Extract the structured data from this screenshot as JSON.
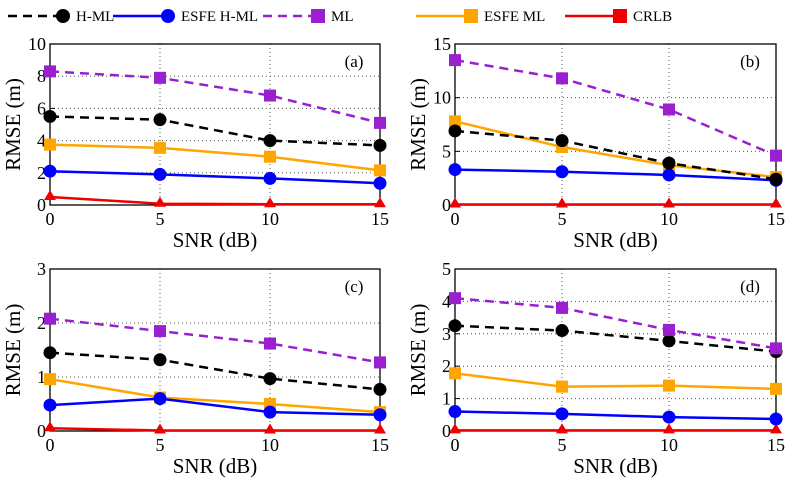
{
  "chart_data": {
    "type": "line",
    "legend": [
      {
        "name": "H-ML",
        "color": "#000000",
        "style": "dashed",
        "marker": "circle"
      },
      {
        "name": "ESFE H-ML",
        "color": "#0000ff",
        "style": "solid",
        "marker": "circle"
      },
      {
        "name": "ML",
        "color": "#9a1fcf",
        "style": "dashed",
        "marker": "square"
      },
      {
        "name": "ESFE ML",
        "color": "#ffa500",
        "style": "solid",
        "marker": "square"
      },
      {
        "name": "CRLB",
        "color": "#ee0000",
        "style": "solid",
        "marker": "square"
      }
    ],
    "panels": [
      {
        "label": "(a)",
        "xlabel": "SNR (dB)",
        "ylabel": "RMSE (m)",
        "x": [
          0,
          5,
          10,
          15
        ],
        "xlim": [
          0,
          15
        ],
        "ylim": [
          0,
          10
        ],
        "xticks": [
          "0",
          "5",
          "10",
          "15"
        ],
        "yticks": [
          0,
          2,
          4,
          6,
          8,
          10
        ],
        "ytick_labels": [
          "0",
          "2",
          "4",
          "6",
          "8",
          "10"
        ],
        "series": [
          {
            "name": "H-ML",
            "values": [
              5.5,
              5.3,
              4.0,
              3.7
            ]
          },
          {
            "name": "ESFE H-ML",
            "values": [
              2.1,
              1.9,
              1.65,
              1.35
            ]
          },
          {
            "name": "ML",
            "values": [
              8.3,
              7.9,
              6.8,
              5.1
            ]
          },
          {
            "name": "ESFE ML",
            "values": [
              3.75,
              3.55,
              3.0,
              2.15
            ]
          },
          {
            "name": "CRLB",
            "values": [
              0.5,
              0.08,
              0.05,
              0.05
            ]
          }
        ]
      },
      {
        "label": "(b)",
        "xlabel": "SNR (dB)",
        "ylabel": "RMSE (m)",
        "x": [
          0,
          5,
          10,
          15
        ],
        "xlim": [
          0,
          15
        ],
        "ylim": [
          0,
          15
        ],
        "xticks": [
          "0",
          "5",
          "10",
          "15"
        ],
        "yticks": [
          0,
          5,
          10,
          15
        ],
        "ytick_labels": [
          "0",
          "5",
          "10",
          "15"
        ],
        "series": [
          {
            "name": "H-ML",
            "values": [
              6.9,
              6.0,
              3.9,
              2.4
            ]
          },
          {
            "name": "ESFE H-ML",
            "values": [
              3.3,
              3.1,
              2.8,
              2.3
            ]
          },
          {
            "name": "ML",
            "values": [
              13.5,
              11.8,
              8.9,
              4.6
            ]
          },
          {
            "name": "ESFE ML",
            "values": [
              7.8,
              5.4,
              3.7,
              2.6
            ]
          },
          {
            "name": "CRLB",
            "values": [
              0.05,
              0.05,
              0.05,
              0.05
            ]
          }
        ]
      },
      {
        "label": "(c)",
        "xlabel": "SNR (dB)",
        "ylabel": "RMSE (m)",
        "x": [
          0,
          5,
          10,
          15
        ],
        "xlim": [
          0,
          15
        ],
        "ylim": [
          0,
          3
        ],
        "xticks": [
          "0",
          "5",
          "10",
          "15"
        ],
        "yticks": [
          0,
          1,
          2,
          3
        ],
        "ytick_labels": [
          "0",
          "1",
          "2",
          "3"
        ],
        "series": [
          {
            "name": "H-ML",
            "values": [
              1.45,
              1.32,
              0.97,
              0.77
            ]
          },
          {
            "name": "ESFE H-ML",
            "values": [
              0.48,
              0.6,
              0.35,
              0.3
            ]
          },
          {
            "name": "ML",
            "values": [
              2.08,
              1.85,
              1.62,
              1.27
            ]
          },
          {
            "name": "ESFE ML",
            "values": [
              0.96,
              0.62,
              0.5,
              0.35
            ]
          },
          {
            "name": "CRLB",
            "values": [
              0.05,
              0.01,
              0.01,
              0.01
            ]
          }
        ]
      },
      {
        "label": "(d)",
        "xlabel": "SNR (dB)",
        "ylabel": "RMSE (m)",
        "x": [
          0,
          5,
          10,
          15
        ],
        "xlim": [
          0,
          15
        ],
        "ylim": [
          0,
          5
        ],
        "xticks": [
          "0",
          "5",
          "10",
          "15"
        ],
        "yticks": [
          0,
          1,
          2,
          3,
          4,
          5
        ],
        "ytick_labels": [
          "0",
          "1",
          "2",
          "3",
          "4",
          "5"
        ],
        "series": [
          {
            "name": "H-ML",
            "values": [
              3.25,
              3.1,
              2.78,
              2.45
            ]
          },
          {
            "name": "ESFE H-ML",
            "values": [
              0.6,
              0.53,
              0.43,
              0.37
            ]
          },
          {
            "name": "ML",
            "values": [
              4.1,
              3.8,
              3.12,
              2.55
            ]
          },
          {
            "name": "ESFE ML",
            "values": [
              1.78,
              1.37,
              1.4,
              1.3
            ]
          },
          {
            "name": "CRLB",
            "values": [
              0.02,
              0.02,
              0.02,
              0.02
            ]
          }
        ]
      }
    ]
  }
}
